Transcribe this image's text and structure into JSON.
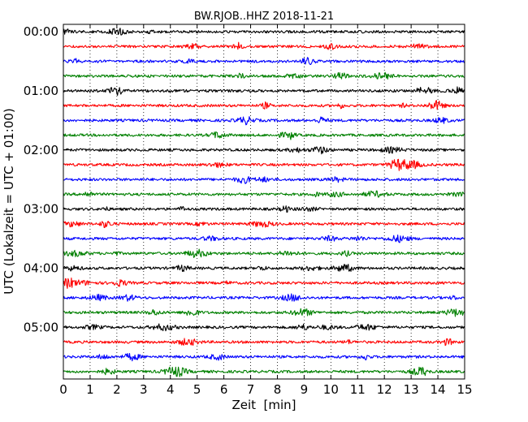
{
  "chart_data": {
    "type": "line",
    "title": "BW.RJOB..HHZ 2018-11-21",
    "xlabel": "Zeit  [min]",
    "ylabel": "UTC (Lokalzeit = UTC + 01:00)",
    "xlim": [
      0,
      15
    ],
    "ylim": [
      -0.5,
      23.5
    ],
    "x_ticks": [
      "0",
      "1",
      "2",
      "3",
      "4",
      "5",
      "6",
      "7",
      "8",
      "9",
      "10",
      "11",
      "12",
      "13",
      "14",
      "15"
    ],
    "y_ticks": [
      {
        "row": 0,
        "label": "00:00"
      },
      {
        "row": 4,
        "label": "01:00"
      },
      {
        "row": 8,
        "label": "02:00"
      },
      {
        "row": 12,
        "label": "03:00"
      },
      {
        "row": 16,
        "label": "04:00"
      },
      {
        "row": 20,
        "label": "05:00"
      }
    ],
    "grid": "vertical-dotted",
    "trace_colors": [
      "#000000",
      "#ff0000",
      "#0000ff",
      "#008000"
    ],
    "series": [
      {
        "start": "00:00",
        "color": "#000000"
      },
      {
        "start": "00:15",
        "color": "#ff0000"
      },
      {
        "start": "00:30",
        "color": "#0000ff"
      },
      {
        "start": "00:45",
        "color": "#008000"
      },
      {
        "start": "01:00",
        "color": "#000000"
      },
      {
        "start": "01:15",
        "color": "#ff0000"
      },
      {
        "start": "01:30",
        "color": "#0000ff"
      },
      {
        "start": "01:45",
        "color": "#008000"
      },
      {
        "start": "02:00",
        "color": "#000000"
      },
      {
        "start": "02:15",
        "color": "#ff0000"
      },
      {
        "start": "02:30",
        "color": "#0000ff"
      },
      {
        "start": "02:45",
        "color": "#008000"
      },
      {
        "start": "03:00",
        "color": "#000000"
      },
      {
        "start": "03:15",
        "color": "#ff0000"
      },
      {
        "start": "03:30",
        "color": "#0000ff"
      },
      {
        "start": "03:45",
        "color": "#008000"
      },
      {
        "start": "04:00",
        "color": "#000000"
      },
      {
        "start": "04:15",
        "color": "#ff0000"
      },
      {
        "start": "04:30",
        "color": "#0000ff"
      },
      {
        "start": "04:45",
        "color": "#008000"
      },
      {
        "start": "05:00",
        "color": "#000000"
      },
      {
        "start": "05:15",
        "color": "#ff0000"
      },
      {
        "start": "05:30",
        "color": "#0000ff"
      },
      {
        "start": "05:45",
        "color": "#008000"
      }
    ]
  }
}
